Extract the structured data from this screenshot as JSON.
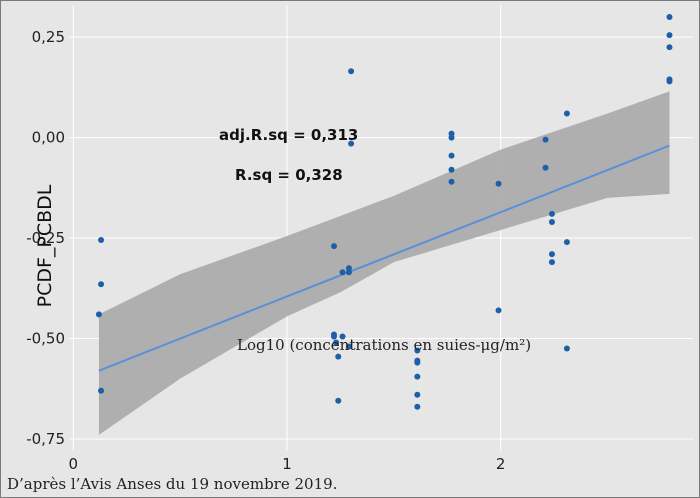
{
  "source_note": "D’après l’Avis Anses du 19 novembre 2019.",
  "chart_data": {
    "type": "scatter",
    "xlabel": "Log10 (concentrations en suies-μg/m²)",
    "ylabel": "PCDF_PCBDL",
    "xlim": [
      -0.02,
      2.9
    ],
    "ylim": [
      -0.78,
      0.33
    ],
    "x_ticks": [
      0,
      1,
      2
    ],
    "x_tick_labels": [
      "0",
      "1",
      "2"
    ],
    "y_ticks": [
      0.25,
      0.0,
      -0.25,
      -0.5,
      -0.75
    ],
    "y_tick_labels": [
      "0,25",
      "0,00",
      "-0,25",
      "-0,50",
      "-0,75"
    ],
    "grid": true,
    "annotations": [
      "adj.R.sq = 0,313",
      "R.sq = 0,328"
    ],
    "colors": {
      "points": "#1f5fa8",
      "fit_line": "#5b8fd9",
      "confidence_band": "#a8a8a8",
      "panel": "#e6e6e6",
      "grid": "#ffffff"
    },
    "points": [
      {
        "x": 0.13,
        "y": -0.255
      },
      {
        "x": 0.13,
        "y": -0.365
      },
      {
        "x": 0.12,
        "y": -0.44
      },
      {
        "x": 0.13,
        "y": -0.63
      },
      {
        "x": 1.22,
        "y": -0.27
      },
      {
        "x": 1.22,
        "y": -0.49
      },
      {
        "x": 1.22,
        "y": -0.495
      },
      {
        "x": 1.23,
        "y": -0.51
      },
      {
        "x": 1.24,
        "y": -0.545
      },
      {
        "x": 1.24,
        "y": -0.655
      },
      {
        "x": 1.26,
        "y": -0.495
      },
      {
        "x": 1.26,
        "y": -0.335
      },
      {
        "x": 1.29,
        "y": -0.325
      },
      {
        "x": 1.29,
        "y": -0.335
      },
      {
        "x": 1.29,
        "y": -0.52
      },
      {
        "x": 1.3,
        "y": 0.165
      },
      {
        "x": 1.3,
        "y": -0.015
      },
      {
        "x": 1.61,
        "y": -0.53
      },
      {
        "x": 1.61,
        "y": -0.555
      },
      {
        "x": 1.61,
        "y": -0.56
      },
      {
        "x": 1.61,
        "y": -0.595
      },
      {
        "x": 1.61,
        "y": -0.64
      },
      {
        "x": 1.61,
        "y": -0.67
      },
      {
        "x": 1.77,
        "y": 0.01
      },
      {
        "x": 1.77,
        "y": 0.0
      },
      {
        "x": 1.77,
        "y": -0.045
      },
      {
        "x": 1.77,
        "y": -0.08
      },
      {
        "x": 1.77,
        "y": -0.11
      },
      {
        "x": 1.99,
        "y": -0.115
      },
      {
        "x": 1.99,
        "y": -0.43
      },
      {
        "x": 2.21,
        "y": -0.005
      },
      {
        "x": 2.21,
        "y": -0.075
      },
      {
        "x": 2.24,
        "y": -0.19
      },
      {
        "x": 2.24,
        "y": -0.21
      },
      {
        "x": 2.24,
        "y": -0.29
      },
      {
        "x": 2.24,
        "y": -0.31
      },
      {
        "x": 2.31,
        "y": 0.06
      },
      {
        "x": 2.31,
        "y": -0.26
      },
      {
        "x": 2.31,
        "y": -0.525
      },
      {
        "x": 2.79,
        "y": 0.3
      },
      {
        "x": 2.79,
        "y": 0.255
      },
      {
        "x": 2.79,
        "y": 0.225
      },
      {
        "x": 2.79,
        "y": 0.145
      },
      {
        "x": 2.79,
        "y": 0.14
      }
    ],
    "fit_line": {
      "x": [
        0.12,
        2.79
      ],
      "y": [
        -0.58,
        -0.02
      ]
    },
    "confidence_band": {
      "x": [
        0.12,
        0.5,
        1.0,
        1.25,
        1.5,
        2.0,
        2.5,
        2.79
      ],
      "upper": [
        -0.44,
        -0.34,
        -0.245,
        -0.195,
        -0.145,
        -0.03,
        0.06,
        0.115
      ],
      "lower": [
        -0.74,
        -0.6,
        -0.445,
        -0.385,
        -0.31,
        -0.23,
        -0.15,
        -0.14
      ]
    }
  }
}
